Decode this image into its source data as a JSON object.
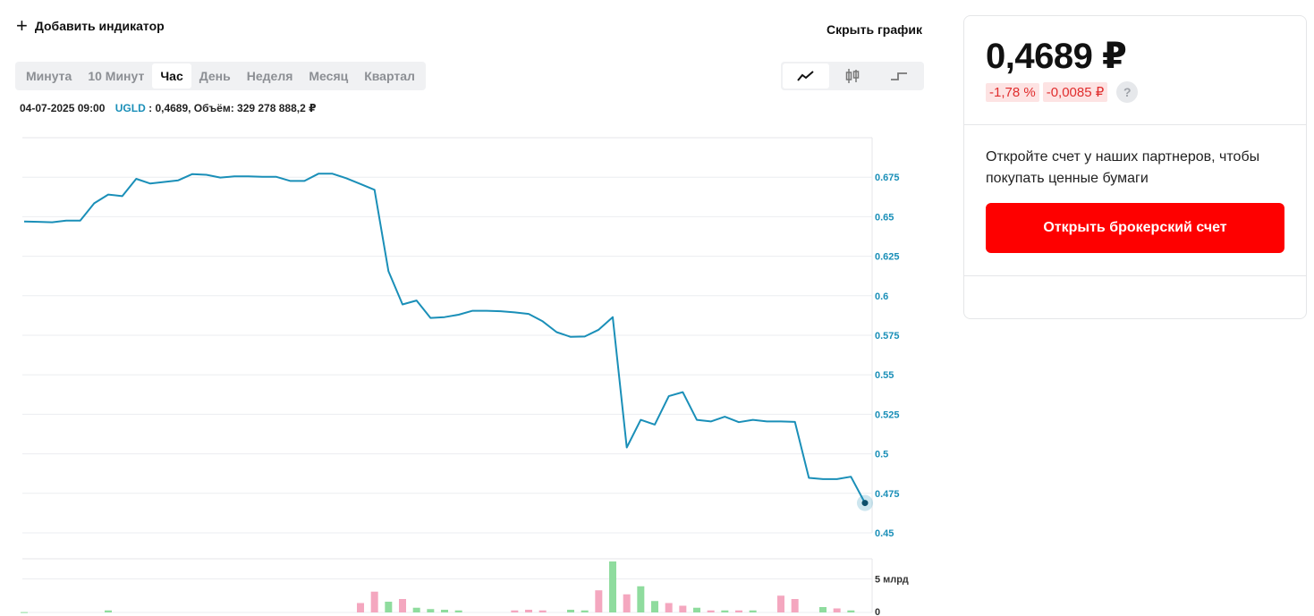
{
  "toolbar": {
    "add_indicator": "Добавить индикатор",
    "hide_chart": "Скрыть график",
    "periods": [
      "Минута",
      "10 Минут",
      "Час",
      "День",
      "Неделя",
      "Месяц",
      "Квартал"
    ],
    "active_period": "Час",
    "chart_types": [
      "line-chart-icon",
      "candlestick-icon",
      "step-chart-icon"
    ],
    "active_chart_type": "line-chart-icon"
  },
  "tooltip": {
    "datetime": "04-07-2025 09:00",
    "ticker": "UGLD",
    "details": ": 0,4689, Объём: 329 278 888,2 ₽"
  },
  "quote": {
    "price": "0,4689 ₽",
    "change_pct": "-1,78 %",
    "change_abs": "-0,0085 ₽",
    "help": "?"
  },
  "promo": {
    "text": "Откройте счет у наших партнеров, чтобы покупать ценные бумаги",
    "button": "Открыть брокерский счет"
  },
  "colors": {
    "line": "#1a8fb8",
    "accent_red": "#fe0000",
    "vol_up": "#8fdc9e",
    "vol_down": "#f4a7bf"
  },
  "chart_data": {
    "type": "line",
    "y_ticks": [
      "0.675",
      "0.65",
      "0.625",
      "0.6",
      "0.575",
      "0.55",
      "0.525",
      "0.5",
      "0.475",
      "0.45"
    ],
    "ylim": [
      0.45,
      0.7
    ],
    "grid": true,
    "series": [
      {
        "values": [
          0.647,
          0.6468,
          0.6465,
          0.6475,
          0.6475,
          0.6585,
          0.664,
          0.663,
          0.674,
          0.671,
          0.672,
          0.673,
          0.677,
          0.6765,
          0.6748,
          0.6755,
          0.6755,
          0.6752,
          0.6752,
          0.6726,
          0.6726,
          0.6772,
          0.6772,
          0.6743,
          0.6707,
          0.667,
          0.6155,
          0.5945,
          0.597,
          0.586,
          0.5865,
          0.588,
          0.5905,
          0.5905,
          0.5902,
          0.5895,
          0.5885,
          0.5838,
          0.577,
          0.574,
          0.5742,
          0.5785,
          0.5865,
          0.504,
          0.5215,
          0.5185,
          0.5365,
          0.539,
          0.5215,
          0.5205,
          0.5235,
          0.52,
          0.5215,
          0.5205,
          0.5205,
          0.5202,
          0.4848,
          0.484,
          0.484,
          0.4855,
          0.4689
        ]
      }
    ],
    "volume": {
      "y_ticks": [
        "5 млрд",
        "0"
      ],
      "max": 8.0,
      "bars": [
        {
          "i": 0,
          "v": 0.05,
          "d": "up"
        },
        {
          "i": 6,
          "v": 0.3,
          "d": "up"
        },
        {
          "i": 24,
          "v": 1.4,
          "d": "down"
        },
        {
          "i": 25,
          "v": 3.1,
          "d": "down"
        },
        {
          "i": 26,
          "v": 1.6,
          "d": "up"
        },
        {
          "i": 27,
          "v": 2.0,
          "d": "down"
        },
        {
          "i": 28,
          "v": 0.7,
          "d": "up"
        },
        {
          "i": 29,
          "v": 0.5,
          "d": "up"
        },
        {
          "i": 30,
          "v": 0.4,
          "d": "up"
        },
        {
          "i": 31,
          "v": 0.3,
          "d": "up"
        },
        {
          "i": 35,
          "v": 0.3,
          "d": "down"
        },
        {
          "i": 36,
          "v": 0.4,
          "d": "down"
        },
        {
          "i": 37,
          "v": 0.3,
          "d": "down"
        },
        {
          "i": 39,
          "v": 0.4,
          "d": "up"
        },
        {
          "i": 40,
          "v": 0.3,
          "d": "up"
        },
        {
          "i": 41,
          "v": 3.3,
          "d": "down"
        },
        {
          "i": 42,
          "v": 7.6,
          "d": "up"
        },
        {
          "i": 43,
          "v": 2.7,
          "d": "down"
        },
        {
          "i": 44,
          "v": 3.9,
          "d": "up"
        },
        {
          "i": 45,
          "v": 1.7,
          "d": "up"
        },
        {
          "i": 46,
          "v": 1.4,
          "d": "down"
        },
        {
          "i": 47,
          "v": 1.0,
          "d": "down"
        },
        {
          "i": 48,
          "v": 0.7,
          "d": "up"
        },
        {
          "i": 49,
          "v": 0.3,
          "d": "down"
        },
        {
          "i": 50,
          "v": 0.3,
          "d": "up"
        },
        {
          "i": 51,
          "v": 0.3,
          "d": "down"
        },
        {
          "i": 52,
          "v": 0.3,
          "d": "up"
        },
        {
          "i": 54,
          "v": 2.5,
          "d": "down"
        },
        {
          "i": 55,
          "v": 2.0,
          "d": "down"
        },
        {
          "i": 57,
          "v": 0.8,
          "d": "up"
        },
        {
          "i": 58,
          "v": 0.6,
          "d": "down"
        },
        {
          "i": 59,
          "v": 0.3,
          "d": "up"
        }
      ]
    }
  }
}
